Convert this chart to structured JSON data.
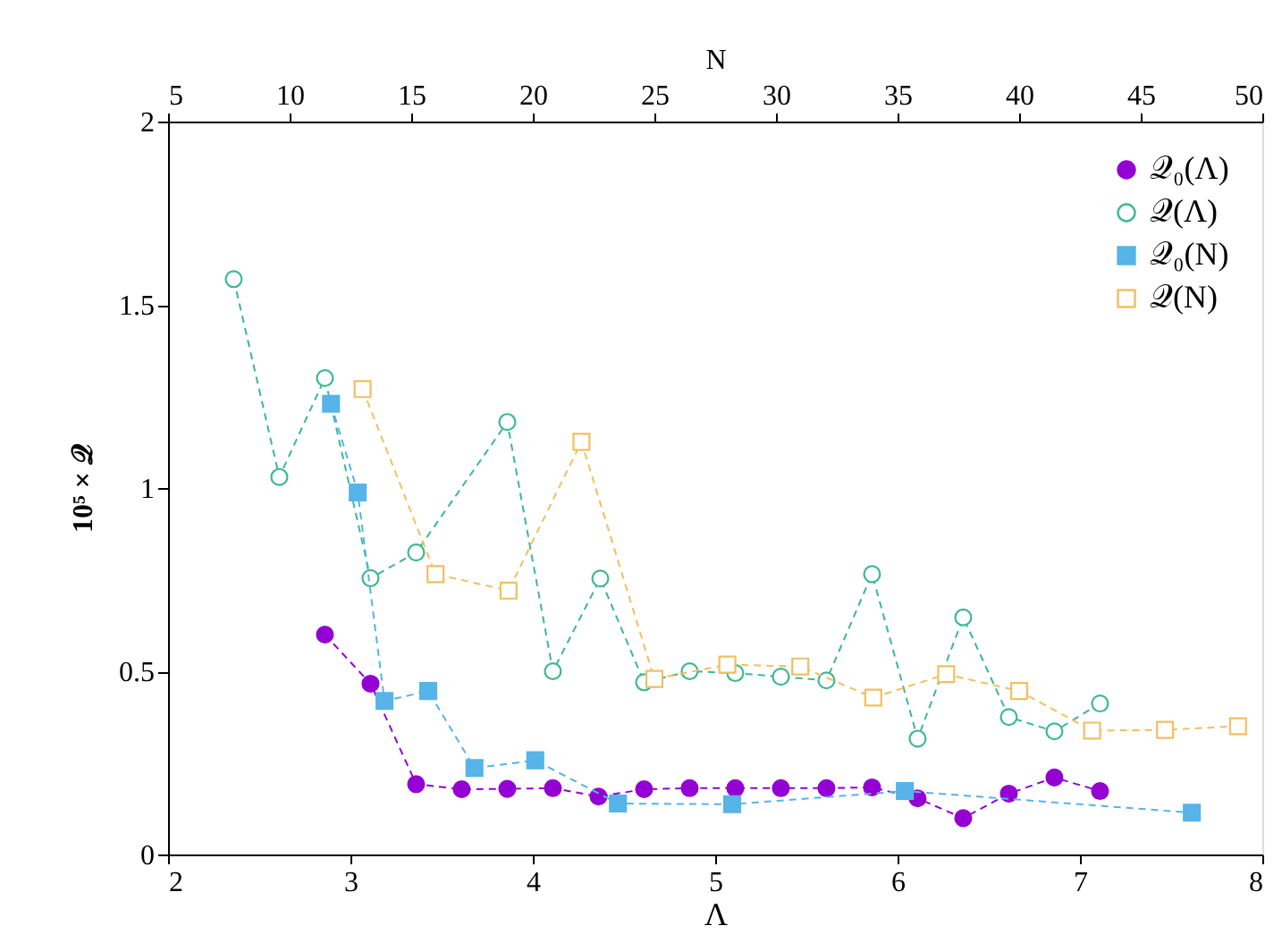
{
  "chart_data": {
    "type": "line",
    "xlabel": "Λ",
    "x2label": "N",
    "ylabel": "10⁵ × 𝒬",
    "xlim": [
      2,
      8
    ],
    "xticks": [
      2,
      3,
      4,
      5,
      6,
      7,
      8
    ],
    "x2lim": [
      5,
      50
    ],
    "x2ticks": [
      5,
      10,
      15,
      20,
      25,
      30,
      35,
      40,
      45,
      50
    ],
    "ylim": [
      0,
      2
    ],
    "yticks": [
      0,
      0.5,
      1,
      1.5,
      2
    ],
    "grid": false,
    "legend": "top right",
    "line_style": "dashed",
    "series": [
      {
        "name": "𝒬₀(Λ)",
        "color": "#9400d3",
        "marker": "circle",
        "x": [
          2.86,
          3.11,
          3.36,
          3.61,
          3.86,
          4.11,
          4.36,
          4.61,
          4.86,
          5.11,
          5.36,
          5.61,
          5.86,
          6.11,
          6.36,
          6.61,
          6.86,
          7.11
        ],
        "values": [
          0.6,
          0.466,
          0.192,
          0.178,
          0.179,
          0.181,
          0.158,
          0.178,
          0.181,
          0.181,
          0.181,
          0.181,
          0.183,
          0.153,
          0.099,
          0.166,
          0.21,
          0.173
        ]
      },
      {
        "name": "𝒬(Λ)",
        "color": "#3cb98e",
        "marker": "circle-open",
        "x": [
          2.36,
          2.61,
          2.86,
          3.11,
          3.36,
          3.86,
          4.11,
          4.37,
          4.61,
          4.86,
          5.11,
          5.36,
          5.61,
          5.86,
          6.11,
          6.36,
          6.61,
          6.86,
          7.11
        ],
        "values": [
          1.57,
          1.03,
          1.3,
          0.754,
          0.824,
          1.18,
          0.5,
          0.753,
          0.47,
          0.5,
          0.495,
          0.485,
          0.475,
          0.765,
          0.316,
          0.647,
          0.375,
          0.336,
          0.412
        ]
      },
      {
        "name": "𝒬₀(N)",
        "color": "#56b4e9",
        "marker": "square",
        "axis": "x2",
        "x": [
          11.7,
          12.8,
          13.9,
          15.7,
          17.6,
          20.1,
          23.5,
          28.2,
          35.3,
          47.1
        ],
        "values": [
          1.23,
          0.988,
          0.419,
          0.446,
          0.236,
          0.257,
          0.139,
          0.137,
          0.173,
          0.114
        ]
      },
      {
        "name": "𝒬(N)",
        "color": "#f0c060",
        "marker": "square-open",
        "axis": "x2",
        "x": [
          13,
          16,
          19,
          22,
          25,
          28,
          31,
          34,
          37,
          40,
          43,
          46,
          49
        ],
        "values": [
          1.27,
          0.765,
          0.72,
          1.126,
          0.479,
          0.518,
          0.513,
          0.428,
          0.492,
          0.446,
          0.338,
          0.34,
          0.35
        ]
      }
    ]
  }
}
